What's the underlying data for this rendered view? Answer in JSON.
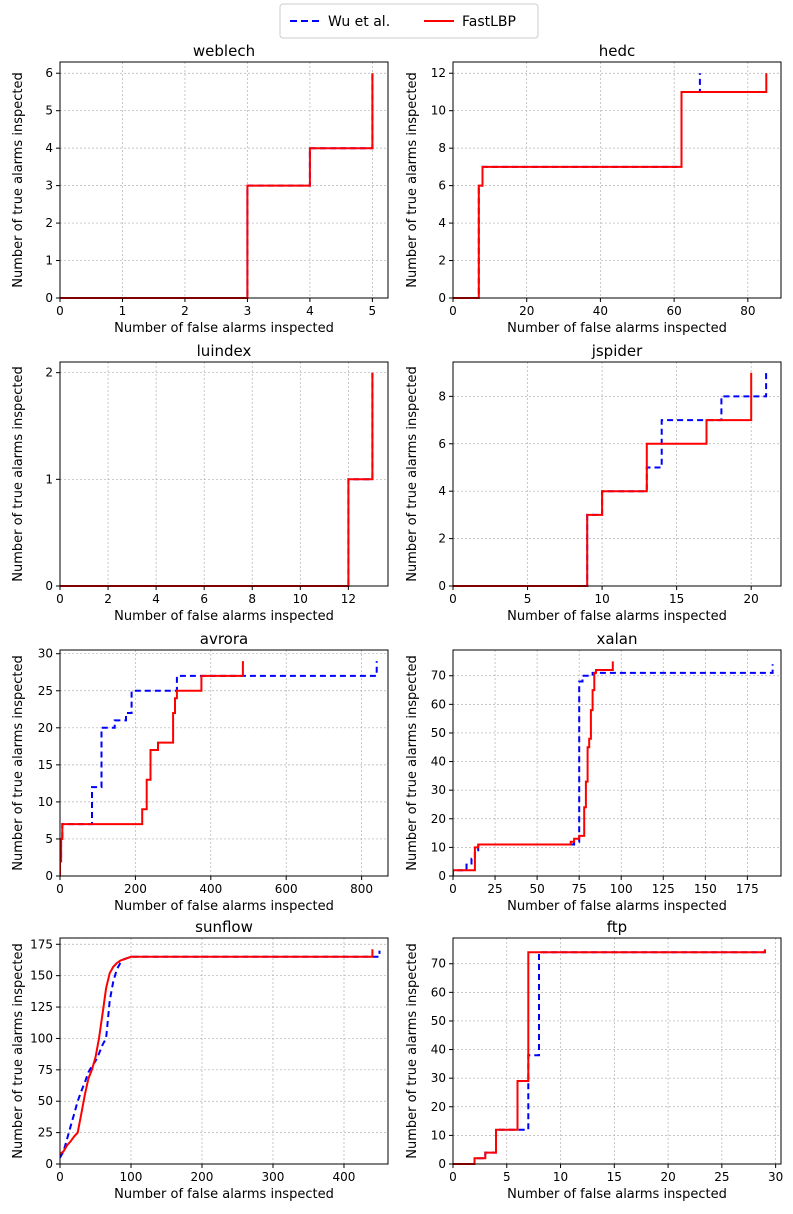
{
  "legend": {
    "entries": [
      {
        "label": "Wu et al.",
        "color": "#0000ff",
        "style": "dashed"
      },
      {
        "label": "FastLBP",
        "color": "#ff0000",
        "style": "solid"
      }
    ],
    "placement": "top-center"
  },
  "chart_data": [
    {
      "type": "line",
      "title": "weblech",
      "xlabel": "Number of false alarms inspected",
      "ylabel": "Number of true alarms inspected",
      "xlim": [
        0,
        5.25
      ],
      "ylim": [
        0,
        6.3
      ],
      "xticks": [
        0,
        1,
        2,
        3,
        4,
        5
      ],
      "yticks": [
        0,
        1,
        2,
        3,
        4,
        5,
        6
      ],
      "grid": true,
      "series": [
        {
          "name": "Wu et al.",
          "color": "#0000ff",
          "style": "dashed",
          "step": true,
          "x": [
            0,
            3,
            3,
            4,
            4,
            5,
            5
          ],
          "y": [
            0,
            0,
            3,
            3,
            4,
            4,
            6
          ]
        },
        {
          "name": "FastLBP",
          "color": "#ff0000",
          "style": "solid",
          "step": true,
          "x": [
            0,
            3,
            3,
            4,
            4,
            5,
            5
          ],
          "y": [
            0,
            0,
            3,
            3,
            4,
            4,
            6
          ]
        }
      ]
    },
    {
      "type": "line",
      "title": "hedc",
      "xlabel": "Number of false alarms inspected",
      "ylabel": "Number of true alarms inspected",
      "xlim": [
        0,
        89
      ],
      "ylim": [
        0,
        12.6
      ],
      "xticks": [
        0,
        20,
        40,
        60,
        80
      ],
      "yticks": [
        0,
        2,
        4,
        6,
        8,
        10,
        12
      ],
      "grid": true,
      "series": [
        {
          "name": "Wu et al.",
          "color": "#0000ff",
          "style": "dashed",
          "step": true,
          "x": [
            0,
            7,
            7,
            8,
            8,
            62,
            62,
            67,
            67
          ],
          "y": [
            0,
            0,
            6,
            6,
            7,
            7,
            11,
            11,
            12
          ]
        },
        {
          "name": "FastLBP",
          "color": "#ff0000",
          "style": "solid",
          "step": true,
          "x": [
            0,
            7,
            7,
            8,
            8,
            62,
            62,
            85,
            85
          ],
          "y": [
            0,
            0,
            6,
            6,
            7,
            7,
            11,
            11,
            12
          ]
        }
      ]
    },
    {
      "type": "line",
      "title": "luindex",
      "xlabel": "Number of false alarms inspected",
      "ylabel": "Number of true alarms inspected",
      "xlim": [
        0,
        13.65
      ],
      "ylim": [
        0,
        2.1
      ],
      "xticks": [
        0,
        2,
        4,
        6,
        8,
        10,
        12
      ],
      "yticks": [
        0,
        1,
        2
      ],
      "grid": true,
      "series": [
        {
          "name": "Wu et al.",
          "color": "#0000ff",
          "style": "dashed",
          "step": true,
          "x": [
            0,
            12,
            12,
            13,
            13
          ],
          "y": [
            0,
            0,
            1,
            1,
            2
          ]
        },
        {
          "name": "FastLBP",
          "color": "#ff0000",
          "style": "solid",
          "step": true,
          "x": [
            0,
            12,
            12,
            13,
            13
          ],
          "y": [
            0,
            0,
            1,
            1,
            2
          ]
        }
      ]
    },
    {
      "type": "line",
      "title": "jspider",
      "xlabel": "Number of false alarms inspected",
      "ylabel": "Number of true alarms inspected",
      "xlim": [
        0,
        22
      ],
      "ylim": [
        0,
        9.45
      ],
      "xticks": [
        0,
        5,
        10,
        15,
        20
      ],
      "yticks": [
        0,
        2,
        4,
        6,
        8
      ],
      "grid": true,
      "series": [
        {
          "name": "Wu et al.",
          "color": "#0000ff",
          "style": "dashed",
          "step": true,
          "x": [
            0,
            9,
            9,
            10,
            10,
            13,
            13,
            14,
            14,
            18,
            18,
            21,
            21
          ],
          "y": [
            0,
            0,
            3,
            3,
            4,
            4,
            5,
            5,
            7,
            7,
            8,
            8,
            9
          ]
        },
        {
          "name": "FastLBP",
          "color": "#ff0000",
          "style": "solid",
          "step": true,
          "x": [
            0,
            9,
            9,
            10,
            10,
            13,
            13,
            17,
            17,
            20,
            20
          ],
          "y": [
            0,
            0,
            3,
            3,
            4,
            4,
            6,
            6,
            7,
            7,
            9
          ]
        }
      ]
    },
    {
      "type": "line",
      "title": "avrora",
      "xlabel": "Number of false alarms inspected",
      "ylabel": "Number of true alarms inspected",
      "xlim": [
        0,
        870
      ],
      "ylim": [
        0,
        30.5
      ],
      "xticks": [
        0,
        200,
        400,
        600,
        800
      ],
      "yticks": [
        0,
        5,
        10,
        15,
        20,
        25,
        30
      ],
      "grid": true,
      "series": [
        {
          "name": "Wu et al.",
          "color": "#0000ff",
          "style": "dashed",
          "step": true,
          "x": [
            0,
            0,
            3,
            3,
            6,
            6,
            85,
            85,
            110,
            110,
            145,
            145,
            175,
            175,
            190,
            190,
            310,
            310,
            840,
            840
          ],
          "y": [
            0,
            2,
            2,
            5,
            5,
            7,
            7,
            12,
            12,
            20,
            20,
            21,
            21,
            22,
            22,
            25,
            25,
            27,
            27,
            29
          ]
        },
        {
          "name": "FastLBP",
          "color": "#ff0000",
          "style": "solid",
          "step": true,
          "x": [
            0,
            0,
            3,
            3,
            6,
            6,
            218,
            218,
            230,
            230,
            240,
            240,
            260,
            260,
            300,
            300,
            305,
            305,
            310,
            310,
            375,
            375,
            485,
            485
          ],
          "y": [
            0,
            2,
            2,
            5,
            5,
            7,
            7,
            9,
            9,
            13,
            13,
            17,
            17,
            18,
            18,
            22,
            22,
            24,
            24,
            25,
            25,
            27,
            27,
            29
          ]
        }
      ]
    },
    {
      "type": "line",
      "title": "xalan",
      "xlabel": "Number of false alarms inspected",
      "ylabel": "Number of true alarms inspected",
      "xlim": [
        0,
        195
      ],
      "ylim": [
        0,
        79
      ],
      "xticks": [
        0,
        25,
        50,
        75,
        100,
        125,
        150,
        175
      ],
      "yticks": [
        0,
        10,
        20,
        30,
        40,
        50,
        60,
        70
      ],
      "grid": true,
      "series": [
        {
          "name": "Wu et al.",
          "color": "#0000ff",
          "style": "dashed",
          "step": true,
          "x": [
            0,
            0,
            8,
            8,
            11,
            11,
            13,
            13,
            15,
            15,
            72,
            72,
            75,
            75,
            77,
            77,
            83,
            83,
            190,
            190
          ],
          "y": [
            0,
            2,
            2,
            4,
            4,
            6,
            6,
            9,
            9,
            11,
            11,
            12,
            12,
            68,
            68,
            70,
            70,
            71,
            71,
            74
          ]
        },
        {
          "name": "FastLBP",
          "color": "#ff0000",
          "style": "solid",
          "step": true,
          "x": [
            0,
            0,
            13,
            13,
            15,
            15,
            70,
            70,
            72,
            72,
            75,
            75,
            78,
            78,
            79,
            79,
            80,
            80,
            81,
            81,
            82,
            82,
            83,
            83,
            84,
            84,
            85,
            85,
            95,
            95
          ],
          "y": [
            0,
            2,
            2,
            10,
            10,
            11,
            11,
            12,
            12,
            13,
            13,
            14,
            14,
            24,
            24,
            33,
            33,
            45,
            45,
            48,
            48,
            58,
            58,
            65,
            65,
            71,
            71,
            72,
            72,
            75
          ]
        }
      ]
    },
    {
      "type": "line",
      "title": "sunflow",
      "xlabel": "Number of false alarms inspected",
      "ylabel": "Number of true alarms inspected",
      "xlim": [
        0,
        462
      ],
      "ylim": [
        0,
        180
      ],
      "xticks": [
        0,
        100,
        200,
        300,
        400
      ],
      "yticks": [
        0,
        25,
        50,
        75,
        100,
        125,
        150,
        175
      ],
      "grid": true,
      "series": [
        {
          "name": "Wu et al.",
          "color": "#0000ff",
          "style": "line",
          "x": [
            0,
            5,
            10,
            15,
            20,
            25,
            30,
            35,
            40,
            45,
            50,
            55,
            60,
            65,
            70,
            75,
            80,
            85,
            90,
            95,
            100,
            450,
            450
          ],
          "y": [
            5,
            10,
            20,
            30,
            40,
            50,
            58,
            65,
            73,
            78,
            82,
            88,
            95,
            100,
            130,
            145,
            155,
            160,
            163,
            164,
            165,
            165,
            170
          ]
        },
        {
          "name": "FastLBP",
          "color": "#ff0000",
          "style": "line",
          "x": [
            0,
            5,
            10,
            15,
            20,
            25,
            30,
            35,
            40,
            45,
            50,
            55,
            60,
            65,
            70,
            75,
            80,
            85,
            90,
            95,
            100,
            440,
            440
          ],
          "y": [
            8,
            10,
            15,
            18,
            22,
            25,
            40,
            55,
            68,
            75,
            85,
            100,
            120,
            140,
            152,
            157,
            160,
            162,
            163,
            164,
            165,
            165,
            171
          ]
        }
      ]
    },
    {
      "type": "line",
      "title": "ftp",
      "xlabel": "Number of false alarms inspected",
      "ylabel": "Number of true alarms inspected",
      "xlim": [
        0,
        30.5
      ],
      "ylim": [
        0,
        79
      ],
      "xticks": [
        0,
        5,
        10,
        15,
        20,
        25,
        30
      ],
      "yticks": [
        0,
        10,
        20,
        30,
        40,
        50,
        60,
        70
      ],
      "grid": true,
      "series": [
        {
          "name": "Wu et al.",
          "color": "#0000ff",
          "style": "dashed",
          "step": true,
          "x": [
            0,
            2,
            2,
            3,
            3,
            4,
            4,
            6,
            6,
            7,
            7,
            8,
            8,
            29,
            29
          ],
          "y": [
            0,
            0,
            2,
            2,
            4,
            4,
            12,
            12,
            12,
            12,
            38,
            38,
            74,
            74,
            75
          ]
        },
        {
          "name": "FastLBP",
          "color": "#ff0000",
          "style": "solid",
          "step": true,
          "x": [
            0,
            2,
            2,
            3,
            3,
            4,
            4,
            6,
            6,
            7,
            7,
            29,
            29
          ],
          "y": [
            0,
            0,
            2,
            2,
            4,
            4,
            12,
            12,
            29,
            29,
            74,
            74,
            75
          ]
        }
      ]
    }
  ]
}
